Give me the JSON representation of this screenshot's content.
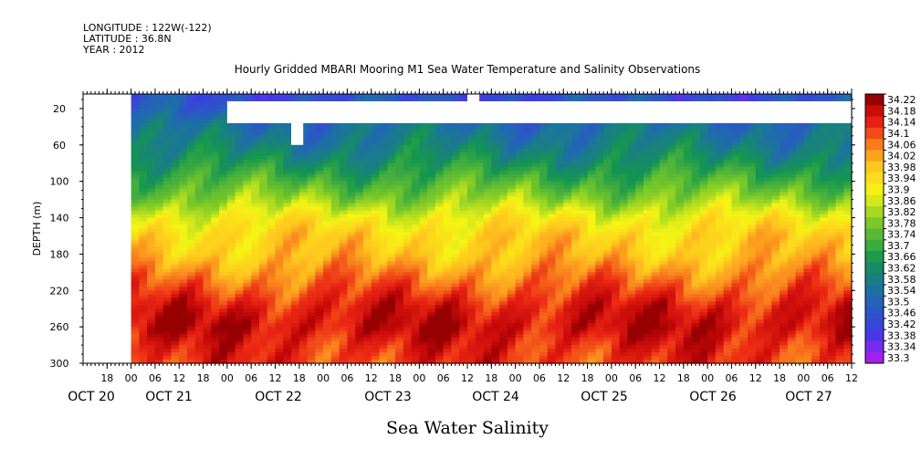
{
  "header": {
    "longitude": "LONGITUDE : 122W(-122)",
    "latitude": "LATITUDE : 36.8N",
    "year": "YEAR : 2012"
  },
  "chart_data": {
    "type": "heatmap",
    "title": "Hourly Gridded MBARI Mooring M1 Sea Water Temperature and Salinity Observations",
    "xlabel": "Sea Water Salinity",
    "ylabel": "DEPTH (m)",
    "ylim": [
      300,
      4
    ],
    "y_ticks": [
      20,
      60,
      100,
      140,
      180,
      220,
      260,
      300
    ],
    "x_hour_ticks": [
      "18",
      "00",
      "06",
      "12",
      "18",
      "00",
      "06",
      "12",
      "18",
      "00",
      "06",
      "12",
      "18",
      "00",
      "06",
      "12",
      "18",
      "00",
      "06",
      "12",
      "18",
      "00",
      "06",
      "12",
      "18",
      "00",
      "06",
      "12",
      "18",
      "00",
      "06",
      "12"
    ],
    "x_day_labels": [
      "OCT 20",
      "OCT 21",
      "OCT 22",
      "OCT 23",
      "OCT 24",
      "OCT 25",
      "OCT 26",
      "OCT 27"
    ],
    "colorbar_levels": [
      "34.22",
      "34.18",
      "34.14",
      "34.1",
      "34.06",
      "34.02",
      "33.98",
      "33.94",
      "33.9",
      "33.86",
      "33.82",
      "33.78",
      "33.74",
      "33.7",
      "33.66",
      "33.62",
      "33.58",
      "33.54",
      "33.5",
      "33.46",
      "33.42",
      "33.38",
      "33.34",
      "33.3"
    ],
    "depth_profile": {
      "depth": [
        4,
        20,
        40,
        60,
        80,
        100,
        120,
        140,
        160,
        180,
        200,
        220,
        240,
        260,
        280,
        300
      ],
      "salinity": [
        33.44,
        33.46,
        33.54,
        33.58,
        33.64,
        33.72,
        33.8,
        33.9,
        33.96,
        33.98,
        34.04,
        34.1,
        34.16,
        34.18,
        34.14,
        34.12
      ]
    },
    "missing_data": "no data before OCT 21 00; gap near surface OCT 22 00 to OCT 27 end",
    "grid": false
  }
}
